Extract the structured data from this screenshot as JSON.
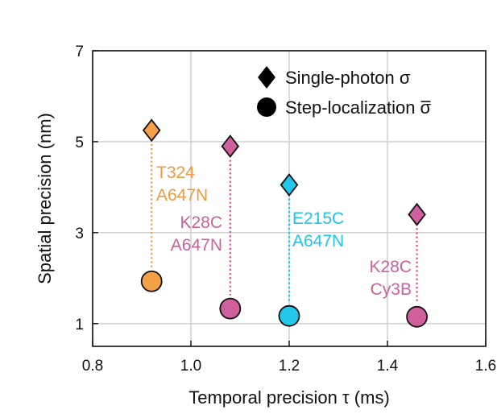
{
  "chart_data": {
    "type": "scatter",
    "xlabel": "Temporal precision τ (ms)",
    "ylabel": "Spatial precision (nm)",
    "xlim": [
      0.8,
      1.6
    ],
    "ylim": [
      0.5,
      7
    ],
    "xticks": [
      "0.8",
      "1.0",
      "1.2",
      "1.4",
      "1.6"
    ],
    "yticks": [
      "1",
      "3",
      "5",
      "7"
    ],
    "grid": true,
    "legend": {
      "position": "top-right",
      "entries": [
        {
          "marker": "diamond",
          "label": "Single-photon σ"
        },
        {
          "marker": "circle",
          "label": "Step-localization σ̄",
          "label_text": "Step-localization ",
          "label_symbol": "σ"
        }
      ]
    },
    "series": [
      {
        "name": "T324 A647N",
        "label_lines": [
          "T324",
          "A647N"
        ],
        "color": "#f4a046",
        "label_color": "#ef9a3e",
        "x": 0.92,
        "single_photon": 5.25,
        "step_localization": 1.93
      },
      {
        "name": "K28C A647N",
        "label_lines": [
          "K28C",
          "A647N"
        ],
        "color": "#cf5f9d",
        "label_color": "#c9619b",
        "x": 1.08,
        "single_photon": 4.9,
        "step_localization": 1.33
      },
      {
        "name": "E215C A647N",
        "label_lines": [
          "E215C",
          "A647N"
        ],
        "color": "#22c8ea",
        "label_color": "#20c4e6",
        "x": 1.2,
        "single_photon": 4.05,
        "step_localization": 1.17
      },
      {
        "name": "K28C Cy3B",
        "label_lines": [
          "K28C",
          "Cy3B"
        ],
        "color": "#cf5f9d",
        "label_color": "#c9619b",
        "x": 1.46,
        "single_photon": 3.4,
        "step_localization": 1.15
      }
    ]
  }
}
